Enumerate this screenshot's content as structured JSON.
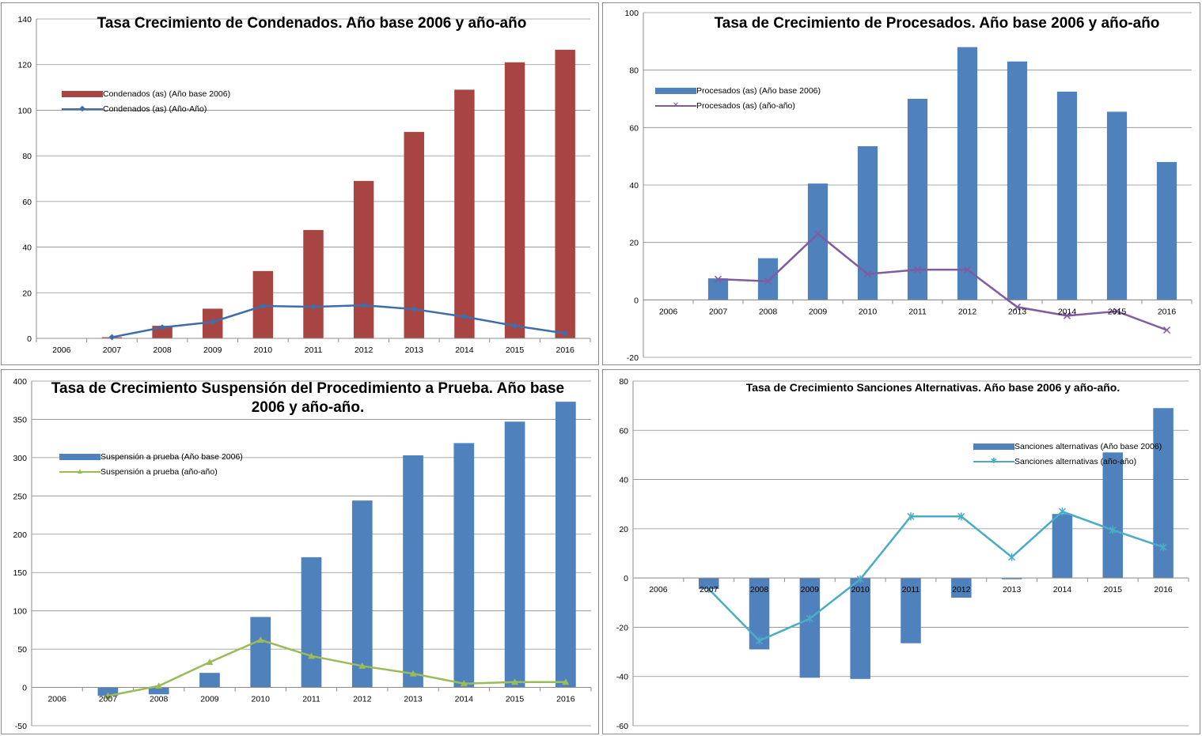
{
  "chart_data": [
    {
      "type": "bar",
      "title": "Tasa Crecimiento de Condenados. Año base 2006 y año-año",
      "categories": [
        "2006",
        "2007",
        "2008",
        "2009",
        "2010",
        "2011",
        "2012",
        "2013",
        "2014",
        "2015",
        "2016"
      ],
      "ylim": [
        0,
        140
      ],
      "yticks": [
        0,
        20,
        40,
        60,
        80,
        100,
        120,
        140
      ],
      "grid": true,
      "legend_position": "left",
      "series": [
        {
          "name": "Condenados (as) (Año base 2006)",
          "kind": "bar",
          "color": "#a84441",
          "values": [
            0,
            0.5,
            5.5,
            13,
            29.5,
            47.5,
            69,
            90.5,
            109,
            121,
            126.5
          ]
        },
        {
          "name": "Condenados (as) (Año-Año)",
          "kind": "line",
          "color": "#3e6ea9",
          "marker": "diamond",
          "values": [
            null,
            0.5,
            4.8,
            7.2,
            14.2,
            13.8,
            14.5,
            12.8,
            9.5,
            5.5,
            2.2
          ]
        }
      ]
    },
    {
      "type": "bar",
      "title": "Tasa de Crecimiento de Procesados. Año base 2006 y año-año",
      "categories": [
        "2006",
        "2007",
        "2008",
        "2009",
        "2010",
        "2011",
        "2012",
        "2013",
        "2014",
        "2015",
        "2016"
      ],
      "ylim": [
        -20,
        100
      ],
      "yticks": [
        -20,
        0,
        20,
        40,
        60,
        80,
        100
      ],
      "grid": true,
      "legend_position": "left",
      "series": [
        {
          "name": "Procesados (as) (Año base 2006)",
          "kind": "bar",
          "color": "#4f81bd",
          "values": [
            0,
            7.5,
            14.5,
            40.5,
            53.5,
            70,
            88,
            83,
            72.5,
            65.5,
            48
          ]
        },
        {
          "name": "Procesados (as) (año-año)",
          "kind": "line",
          "color": "#7f5ba2",
          "marker": "x",
          "values": [
            null,
            7.2,
            6.5,
            23,
            9,
            10.5,
            10.5,
            -2.5,
            -5.5,
            -4,
            -10.5
          ]
        }
      ]
    },
    {
      "type": "bar",
      "title": "Tasa de Crecimiento Suspensión del Procedimiento a Prueba. Año base 2006 y año-año.",
      "categories": [
        "2006",
        "2007",
        "2008",
        "2009",
        "2010",
        "2011",
        "2012",
        "2013",
        "2014",
        "2015",
        "2016"
      ],
      "ylim": [
        -50,
        400
      ],
      "yticks": [
        -50,
        0,
        50,
        100,
        150,
        200,
        250,
        300,
        350,
        400
      ],
      "grid": true,
      "legend_position": "left",
      "series": [
        {
          "name": "Suspensión a prueba (Año base 2006)",
          "kind": "bar",
          "color": "#4f81bd",
          "values": [
            0,
            -11,
            -9,
            19,
            92,
            170,
            244,
            303,
            319,
            347,
            373
          ]
        },
        {
          "name": "Suspensión a prueba (año-año)",
          "kind": "line",
          "color": "#9bbb59",
          "marker": "triangle",
          "values": [
            null,
            -11,
            2,
            33,
            62,
            41,
            28,
            18,
            5,
            7,
            7
          ]
        }
      ]
    },
    {
      "type": "bar",
      "title": "Tasa de Crecimiento Sanciones Alternativas. Año base 2006 y año-año.",
      "categories": [
        "2006",
        "2007",
        "2008",
        "2009",
        "2010",
        "2011",
        "2012",
        "2013",
        "2014",
        "2015",
        "2016"
      ],
      "ylim": [
        -60,
        80
      ],
      "yticks": [
        -60,
        -40,
        -20,
        0,
        20,
        40,
        60,
        80
      ],
      "grid": true,
      "legend_position": "right",
      "series": [
        {
          "name": "Sanciones alternativas (Año base 2006)",
          "kind": "bar",
          "color": "#4f81bd",
          "values": [
            0,
            -4.5,
            -29,
            -40.5,
            -41,
            -26.5,
            -8,
            -0.5,
            26,
            51,
            69
          ]
        },
        {
          "name": "Sanciones alternativas (año-año)",
          "kind": "line",
          "color": "#4bacc6",
          "marker": "star",
          "values": [
            null,
            -4.5,
            -25.5,
            -16.5,
            -0.5,
            25,
            25,
            8.5,
            27,
            19.5,
            12.5
          ]
        }
      ]
    }
  ]
}
